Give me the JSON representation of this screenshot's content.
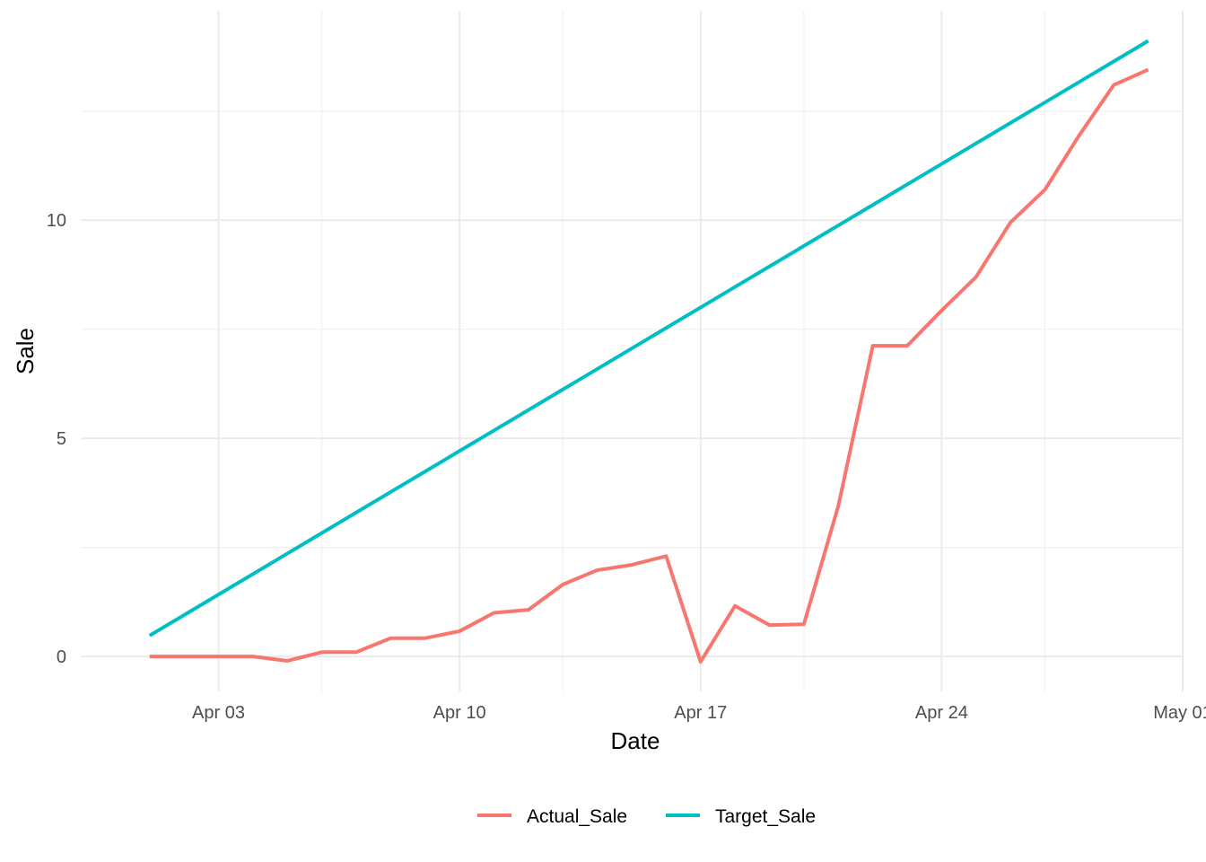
{
  "chart_data": {
    "type": "line",
    "title": "",
    "xlabel": "Date",
    "ylabel": "Sale",
    "x_ticks": [
      "2025-04-03",
      "2025-04-10",
      "2025-04-17",
      "2025-04-24",
      "2025-05-01"
    ],
    "x_tick_labels": [
      "Apr 03",
      "Apr 10",
      "Apr 17",
      "Apr 24",
      "May 01"
    ],
    "y_ticks": [
      0,
      5,
      10
    ],
    "xlim": [
      "2025-03-30",
      "2025-05-01"
    ],
    "ylim": [
      -0.8,
      14.8
    ],
    "grid": true,
    "legend_position": "bottom",
    "x": [
      "2025-04-01",
      "2025-04-02",
      "2025-04-03",
      "2025-04-04",
      "2025-04-05",
      "2025-04-06",
      "2025-04-07",
      "2025-04-08",
      "2025-04-09",
      "2025-04-10",
      "2025-04-11",
      "2025-04-12",
      "2025-04-13",
      "2025-04-14",
      "2025-04-15",
      "2025-04-16",
      "2025-04-17",
      "2025-04-18",
      "2025-04-19",
      "2025-04-20",
      "2025-04-21",
      "2025-04-22",
      "2025-04-23",
      "2025-04-24",
      "2025-04-25",
      "2025-04-26",
      "2025-04-27",
      "2025-04-28",
      "2025-04-29",
      "2025-04-30"
    ],
    "series": [
      {
        "name": "Actual_Sale",
        "color": "#F8766D",
        "values": [
          0,
          0,
          0,
          0,
          -0.1,
          0.1,
          0.1,
          0.42,
          0.42,
          0.58,
          1.0,
          1.07,
          1.65,
          1.98,
          2.1,
          2.3,
          -0.12,
          1.16,
          0.72,
          0.74,
          3.45,
          7.12,
          7.12,
          7.93,
          8.7,
          9.95,
          10.7,
          11.95,
          13.1,
          13.45
        ]
      },
      {
        "name": "Target_Sale",
        "color": "#00BFC4",
        "values": [
          0.48,
          0.95,
          1.42,
          1.89,
          2.36,
          2.83,
          3.3,
          3.77,
          4.24,
          4.71,
          5.18,
          5.65,
          6.12,
          6.59,
          7.06,
          7.53,
          8.0,
          8.47,
          8.94,
          9.41,
          9.88,
          10.35,
          10.82,
          11.29,
          11.76,
          12.23,
          12.7,
          13.17,
          13.64,
          14.11
        ]
      }
    ]
  }
}
